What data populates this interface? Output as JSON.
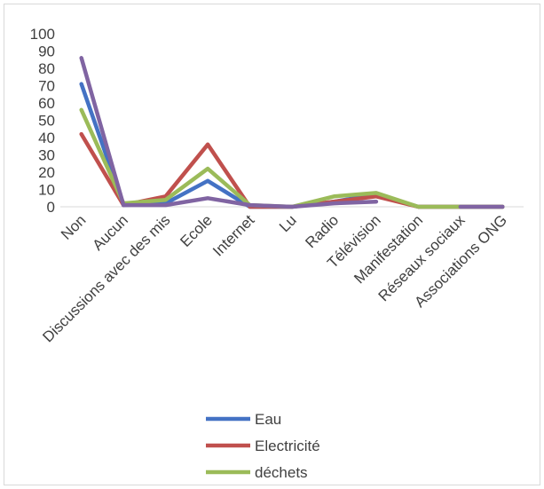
{
  "chart_data": {
    "type": "line",
    "title": "",
    "xlabel": "",
    "ylabel": "",
    "categories": [
      "Non",
      "Aucun",
      "Discussions avec des mis",
      "Ecole",
      "Internet",
      "Lu",
      "Radio",
      "Télévision",
      "Manifestation",
      "Réseaux sociaux",
      "Associations ONG"
    ],
    "ylim": [
      0,
      100
    ],
    "yticks": [
      "0",
      "10",
      "20",
      "30",
      "40",
      "50",
      "60",
      "70",
      "80",
      "90",
      "100"
    ],
    "grid": false,
    "legend_position": "bottom",
    "series": [
      {
        "name": "Eau",
        "color": "#4472C4",
        "values": [
          71,
          1,
          2,
          15,
          0,
          0,
          3,
          7,
          0,
          0,
          0
        ]
      },
      {
        "name": "Electricité",
        "color": "#C0504D",
        "values": [
          42,
          1,
          6,
          36,
          0,
          0,
          3,
          6,
          0,
          0,
          0
        ]
      },
      {
        "name": "déchets",
        "color": "#9BBB59",
        "values": [
          56,
          2,
          4,
          22,
          1,
          0,
          6,
          8,
          0,
          0,
          0
        ]
      },
      {
        "name": "",
        "color": "#8064A2",
        "values": [
          86,
          1,
          1,
          5,
          1,
          0,
          2,
          3,
          null,
          0,
          0
        ]
      }
    ]
  }
}
